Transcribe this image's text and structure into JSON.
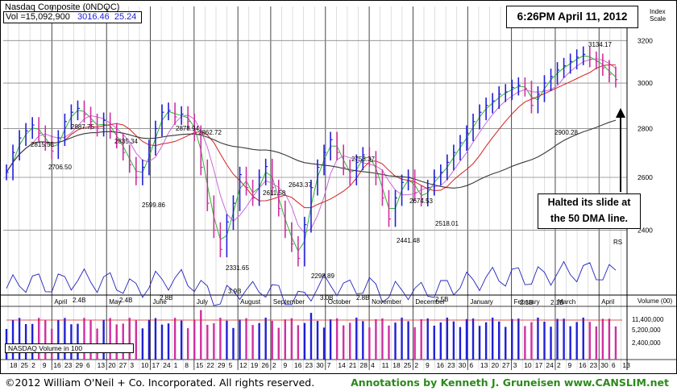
{
  "header": {
    "symbol_label": "Nasdaq Composite (0NDQC)",
    "volume_label": "Vol =15,092,900",
    "last_price": "3016.46",
    "change": "25.24",
    "index_scale_label": "Index\nScale"
  },
  "timestamp_box": "6:26PM April 11, 2012",
  "callout_text": "Halted its slide at\nthe 50 DMA line.",
  "rs_label": "RS",
  "volume_panel": {
    "title": "NASDAQ Volume in 100",
    "axis_title": "Volume (00)",
    "axis_ticks": [
      {
        "label": "11,400,000",
        "value": 11400000
      },
      {
        "label": "5,200,000",
        "value": 5200000
      },
      {
        "label": "2,400,000",
        "value": 2400000
      }
    ],
    "annotations": [
      "2.4B",
      "2.4B",
      "2.8B",
      "3.9B",
      "3.0B",
      "2.8B",
      "2.5B",
      "2.1B",
      "2.1B"
    ]
  },
  "footer": {
    "copyright": "©2012 William O'Neil + Co. Incorporated. All rights reserved.",
    "annotations": "Annotations by Kenneth J. Gruneisen www.CANSLIM.net"
  },
  "colors": {
    "up_bar": "#1f1fd6",
    "down_bar": "#d02fa0",
    "ma_10": "#2bb52b",
    "ma_21": "#c86ad8",
    "ma_50": "#d42020",
    "ma_200": "#3a3a3a",
    "rs_line": "#2222bb",
    "annotation_green": "#2a8a1a"
  },
  "chart_data": {
    "type": "line",
    "title": "Nasdaq Composite (0NDQC)",
    "y_axis": {
      "ticks": [
        2400,
        2600,
        2800,
        3000,
        3200
      ],
      "min": 2180,
      "max": 3370,
      "scale": "log"
    },
    "month_labels": [
      "April",
      "May",
      "June",
      "July",
      "August",
      "September",
      "October",
      "November",
      "December",
      "January",
      "February",
      "March",
      "April"
    ],
    "day_labels": [
      "18",
      "25",
      "2",
      "9",
      "16",
      "23",
      "29",
      "6",
      "13",
      "20",
      "27",
      "3",
      "10",
      "17",
      "24",
      "1",
      "8",
      "15",
      "22",
      "29",
      "5",
      "12",
      "19",
      "26",
      "2",
      "9",
      "16",
      "23",
      "30",
      "7",
      "14",
      "21",
      "28",
      "4",
      "11",
      "18",
      "25",
      "2",
      "9",
      "16",
      "23",
      "30",
      "6",
      "13",
      "20",
      "27",
      "3",
      "10",
      "17",
      "24",
      "2",
      "9",
      "16",
      "23",
      "30",
      "6",
      "13"
    ],
    "price_annotations": [
      {
        "label": "2815.55",
        "value": 2815.55
      },
      {
        "label": "2706.50",
        "value": 2706.5
      },
      {
        "label": "2887.75",
        "value": 2887.75
      },
      {
        "label": "2835.34",
        "value": 2835.34
      },
      {
        "label": "2599.86",
        "value": 2599.86
      },
      {
        "label": "2878.94",
        "value": 2878.94
      },
      {
        "label": "2862.72",
        "value": 2862.72
      },
      {
        "label": "2611.58",
        "value": 2611.58
      },
      {
        "label": "2331.65",
        "value": 2331.65
      },
      {
        "label": "2643.37",
        "value": 2643.37
      },
      {
        "label": "2298.89",
        "value": 2298.89
      },
      {
        "label": "2753.37",
        "value": 2753.37
      },
      {
        "label": "2674.53",
        "value": 2674.53
      },
      {
        "label": "2441.48",
        "value": 2441.48
      },
      {
        "label": "2518.01",
        "value": 2518.01
      },
      {
        "label": "2900.28",
        "value": 2900.28
      },
      {
        "label": "3134.17",
        "value": 3134.17
      }
    ],
    "series": [
      {
        "values": [
          2620,
          2700,
          2760,
          2790,
          2815,
          2780,
          2740,
          2706,
          2760,
          2830,
          2870,
          2887,
          2860,
          2830,
          2800,
          2835,
          2790,
          2750,
          2700,
          2650,
          2600,
          2640,
          2720,
          2800,
          2870,
          2878,
          2850,
          2862,
          2830,
          2780,
          2640,
          2500,
          2400,
          2331,
          2430,
          2500,
          2611,
          2560,
          2520,
          2600,
          2643,
          2560,
          2480,
          2400,
          2350,
          2299,
          2420,
          2560,
          2640,
          2700,
          2753,
          2700,
          2640,
          2600,
          2660,
          2690,
          2674,
          2600,
          2520,
          2441,
          2520,
          2580,
          2600,
          2540,
          2518,
          2560,
          2600,
          2620,
          2660,
          2700,
          2740,
          2780,
          2830,
          2870,
          2900,
          2920,
          2950,
          2960,
          2980,
          2990,
          2975,
          2900,
          2950,
          3000,
          3030,
          3060,
          3080,
          3100,
          3120,
          3134,
          3110,
          3100,
          3070,
          3040,
          3016
        ]
      }
    ]
  }
}
